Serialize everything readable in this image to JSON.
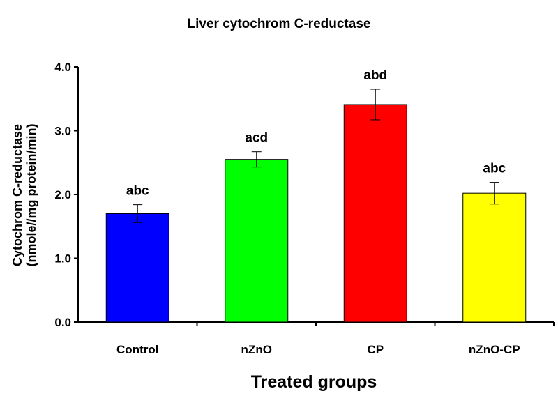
{
  "chart_data": {
    "type": "bar",
    "title": "Liver cytochrom C-reductase",
    "xlabel": "Treated groups",
    "ylabel_line1": "Cytochrom C-reductase",
    "ylabel_line2": "(nmole//mg protein/min)",
    "categories": [
      "Control",
      "nZnO",
      "CP",
      "nZnO-CP"
    ],
    "values": [
      1.7,
      2.55,
      3.41,
      2.02
    ],
    "errors": [
      0.14,
      0.12,
      0.24,
      0.17
    ],
    "significance_labels": [
      "abc",
      "acd",
      "abd",
      "abc"
    ],
    "bar_colors": [
      "#0000ff",
      "#00ff00",
      "#ff0000",
      "#ffff00"
    ],
    "ylim": [
      0,
      4
    ],
    "yticks": [
      "0.0",
      "1.0",
      "2.0",
      "3.0",
      "4.0"
    ],
    "ytick_values": [
      0,
      1,
      2,
      3,
      4
    ],
    "grid": false,
    "legend": "none"
  }
}
